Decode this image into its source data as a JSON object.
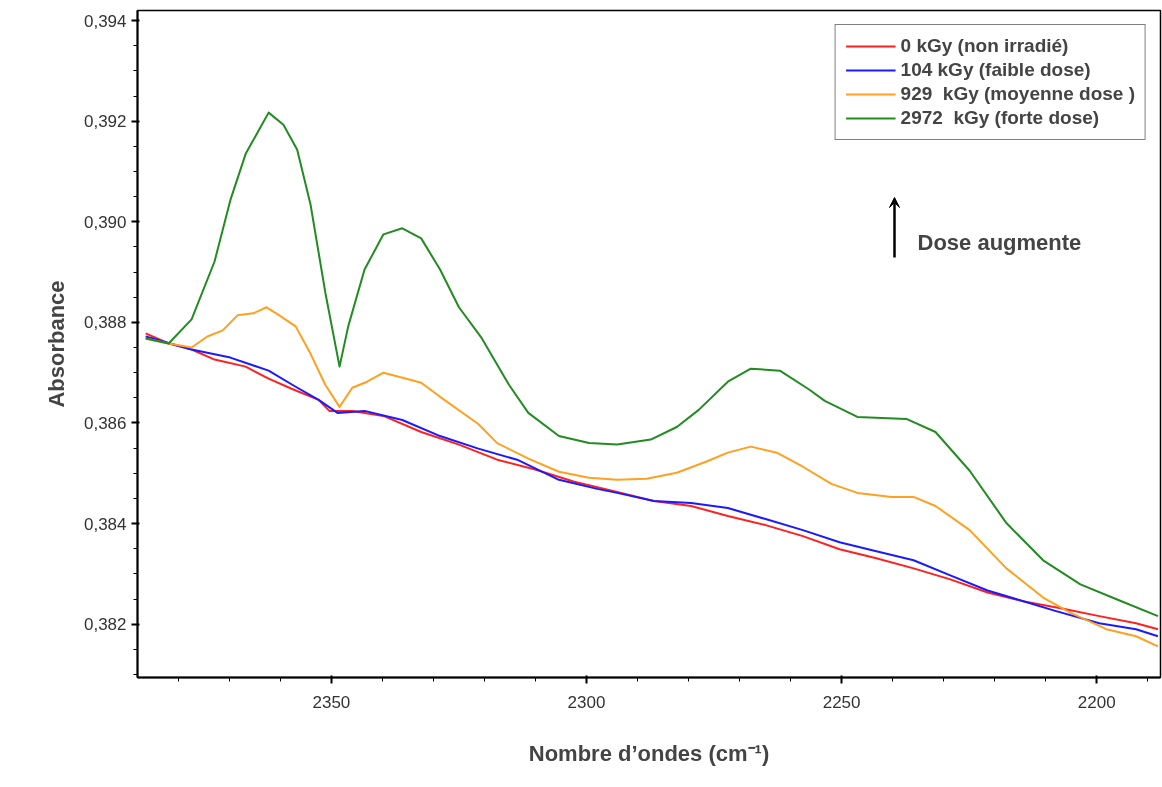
{
  "chart_data": {
    "type": "line",
    "xlabel": "Nombre d’ondes (cm⁻¹)",
    "ylabel": "Absorbance",
    "xlim": [
      2388,
      2187.5
    ],
    "ylim": [
      0.38094,
      0.3942
    ],
    "xticks": [
      2350,
      2300,
      2250,
      2200
    ],
    "yticks": [
      {
        "value": 0.382,
        "label": "0,382"
      },
      {
        "value": 0.384,
        "label": "0,384"
      },
      {
        "value": 0.386,
        "label": "0,386"
      },
      {
        "value": 0.388,
        "label": "0,388"
      },
      {
        "value": 0.39,
        "label": "0,390"
      },
      {
        "value": 0.392,
        "label": "0,392"
      },
      {
        "value": 0.394,
        "label": "0,394"
      }
    ],
    "grid": false,
    "legend": "top right",
    "marker": "none",
    "line_style": "solid",
    "annotations": [
      "Dose augmente"
    ],
    "series": [
      {
        "name": "0 kGy (non irradié)",
        "color": "#ff2020",
        "x": [
          2386.4,
          2381.9,
          2377.4,
          2372.9,
          2366.8,
          2362.3,
          2357.8,
          2352.5,
          2350.4,
          2345.9,
          2339.8,
          2332.4,
          2325.0,
          2317.5,
          2309.9,
          2302.4,
          2294.0,
          2286.8,
          2279.5,
          2272.3,
          2264.9,
          2257.6,
          2250.4,
          2243.2,
          2235.9,
          2228.7,
          2221.4,
          2214.2,
          2206.8,
          2199.5,
          2192.3,
          2188.0
        ],
        "values": [
          0.38778,
          0.38758,
          0.38746,
          0.38726,
          0.38712,
          0.38688,
          0.38668,
          0.38646,
          0.38624,
          0.38624,
          0.38614,
          0.38582,
          0.38557,
          0.38527,
          0.38507,
          0.38483,
          0.38463,
          0.38445,
          0.38435,
          0.38415,
          0.38397,
          0.38375,
          0.38349,
          0.38331,
          0.38311,
          0.38289,
          0.38263,
          0.38245,
          0.38231,
          0.38216,
          0.38202,
          0.3819
        ]
      },
      {
        "name": "104 kGy (faible dose)",
        "color": "#1a1aff",
        "x": [
          2386.4,
          2377.4,
          2369.8,
          2362.3,
          2357.0,
          2352.5,
          2348.8,
          2343.5,
          2336.1,
          2328.7,
          2321.2,
          2313.6,
          2305.4,
          2297.9,
          2294.0,
          2286.8,
          2279.5,
          2272.3,
          2264.9,
          2257.6,
          2250.4,
          2243.2,
          2235.9,
          2228.7,
          2221.4,
          2214.2,
          2208.3,
          2199.5,
          2192.3,
          2188.0
        ],
        "values": [
          0.38772,
          0.38746,
          0.3873,
          0.38704,
          0.38672,
          0.38646,
          0.3862,
          0.38624,
          0.38606,
          0.38574,
          0.38549,
          0.38527,
          0.38487,
          0.38469,
          0.38461,
          0.38445,
          0.38441,
          0.38431,
          0.38409,
          0.38387,
          0.38363,
          0.38345,
          0.38327,
          0.38297,
          0.38267,
          0.38245,
          0.38227,
          0.38202,
          0.3819,
          0.38176
        ]
      },
      {
        "name": "929  kGy (moyenne dose )",
        "color": "#ffa020",
        "x": [
          2386.4,
          2381.9,
          2377.4,
          2374.3,
          2371.3,
          2368.4,
          2365.3,
          2362.7,
          2360.2,
          2357.0,
          2354.1,
          2351.2,
          2348.4,
          2345.9,
          2343.0,
          2339.8,
          2335.3,
          2332.4,
          2328.7,
          2321.2,
          2317.5,
          2311.4,
          2305.4,
          2299.5,
          2294.0,
          2288.2,
          2282.3,
          2276.6,
          2272.3,
          2267.8,
          2262.7,
          2257.6,
          2252.0,
          2246.9,
          2240.2,
          2235.9,
          2231.6,
          2224.9,
          2217.7,
          2210.5,
          2205.4,
          2198.1,
          2192.3,
          2188.0
        ],
        "values": [
          0.38768,
          0.38758,
          0.3875,
          0.38772,
          0.38784,
          0.38814,
          0.38818,
          0.3883,
          0.38814,
          0.38792,
          0.38738,
          0.38676,
          0.38632,
          0.3867,
          0.38682,
          0.387,
          0.38688,
          0.3868,
          0.38652,
          0.38598,
          0.3856,
          0.38529,
          0.38503,
          0.38491,
          0.38487,
          0.38489,
          0.38501,
          0.38523,
          0.38541,
          0.38553,
          0.38541,
          0.38513,
          0.38479,
          0.38461,
          0.38453,
          0.38453,
          0.38435,
          0.38387,
          0.38311,
          0.38253,
          0.38224,
          0.3819,
          0.38176,
          0.38156
        ]
      },
      {
        "name": "2972  kGy (forte dose)",
        "color": "#228b22",
        "x": [
          2386.4,
          2381.9,
          2377.4,
          2372.9,
          2369.8,
          2366.8,
          2362.3,
          2359.4,
          2356.7,
          2354.1,
          2351.2,
          2348.4,
          2346.7,
          2343.5,
          2339.8,
          2336.1,
          2332.4,
          2328.7,
          2325.0,
          2320.5,
          2315.2,
          2311.4,
          2305.4,
          2299.5,
          2294.0,
          2287.4,
          2282.3,
          2278.0,
          2272.3,
          2267.8,
          2262.1,
          2256.3,
          2253.3,
          2246.9,
          2237.3,
          2231.6,
          2224.9,
          2217.7,
          2210.5,
          2203.2,
          2196.0,
          2188.0
        ],
        "values": [
          0.38768,
          0.38758,
          0.38806,
          0.38921,
          0.39043,
          0.39135,
          0.39217,
          0.39193,
          0.39143,
          0.39035,
          0.3886,
          0.38712,
          0.38792,
          0.38905,
          0.38975,
          0.38987,
          0.38967,
          0.38905,
          0.3883,
          0.38768,
          0.38676,
          0.3862,
          0.38574,
          0.3856,
          0.38557,
          0.38567,
          0.38592,
          0.38626,
          0.38682,
          0.38708,
          0.38704,
          0.38666,
          0.38644,
          0.38612,
          0.38608,
          0.38582,
          0.38505,
          0.38401,
          0.38327,
          0.38279,
          0.38249,
          0.38216
        ]
      }
    ]
  }
}
